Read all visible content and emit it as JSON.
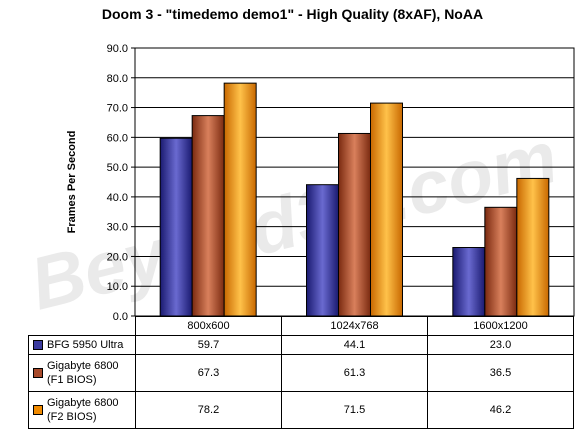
{
  "chart_data": {
    "type": "bar",
    "title": "Doom 3 - \"timedemo demo1\" - High Quality (8xAF), NoAA",
    "ylabel": "Frames Per Second",
    "xlabel": "",
    "ylim": [
      0,
      90
    ],
    "yticks": [
      "0.0",
      "10.0",
      "20.0",
      "30.0",
      "40.0",
      "50.0",
      "60.0",
      "70.0",
      "80.0",
      "90.0"
    ],
    "categories": [
      "800x600",
      "1024x768",
      "1600x1200"
    ],
    "series": [
      {
        "name": "BFG 5950 Ultra",
        "values": [
          59.7,
          44.1,
          23.0
        ],
        "value_labels": [
          "59.7",
          "44.1",
          "23.0"
        ],
        "color": "#3a3a9e"
      },
      {
        "name": "Gigabyte 6800 (F1 BIOS)",
        "values": [
          67.3,
          61.3,
          36.5
        ],
        "value_labels": [
          "67.3",
          "61.3",
          "36.5"
        ],
        "color": "#a84a2a"
      },
      {
        "name": "Gigabyte 6800 (F2 BIOS)",
        "values": [
          78.2,
          71.5,
          46.2
        ],
        "value_labels": [
          "78.2",
          "71.5",
          "46.2"
        ],
        "color": "#f08a00"
      }
    ],
    "grid": true,
    "legend": "data-table",
    "watermark": "Beyond3D.com"
  }
}
